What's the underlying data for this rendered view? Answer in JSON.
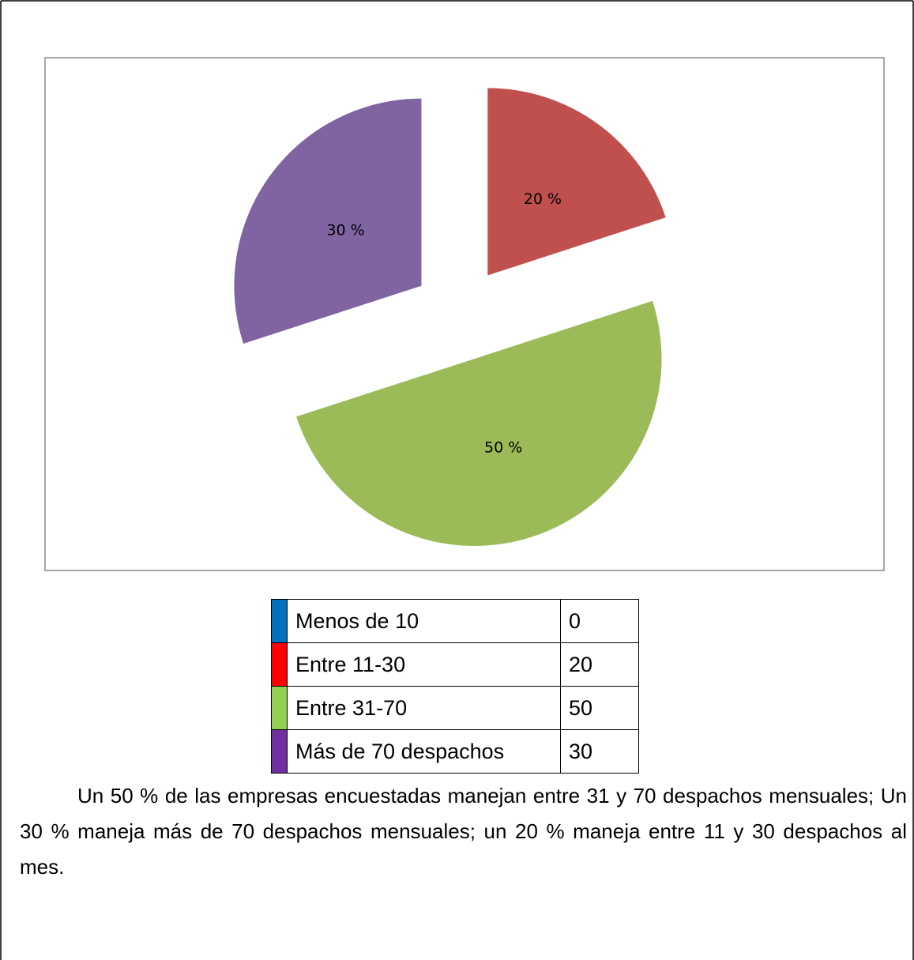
{
  "chart_data": {
    "type": "pie",
    "categories": [
      "Menos de 10",
      "Entre 11-30",
      "Entre 31-70",
      "Más de 70 despachos"
    ],
    "values": [
      0,
      20,
      50,
      30
    ],
    "value_labels": [
      null,
      "20 %",
      "50 %",
      "30 %"
    ],
    "colors": [
      "#4f81bd",
      "#c0504d",
      "#9bbb59",
      "#8064a2"
    ],
    "exploded": true,
    "legend_colors": [
      "#0070c0",
      "#ff0000",
      "#92d050",
      "#7030a0"
    ]
  },
  "paragraph": "Un 50 % de las empresas encuestadas manejan entre 31 y 70 despachos mensuales;  Un 30 % maneja más de 70 despachos mensuales; un 20 % maneja entre 11 y 30 despachos al mes."
}
